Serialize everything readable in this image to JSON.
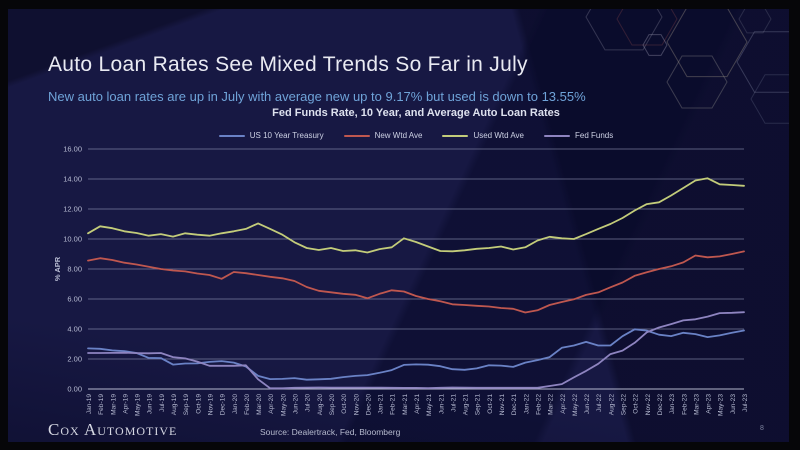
{
  "slide": {
    "title": "Auto Loan Rates See Mixed Trends So Far in July",
    "subtitle": "New auto loan rates are up in July with average new up to 9.17% but used is down to 13.55%",
    "page_number": "8"
  },
  "footer": {
    "logo_text": "Cox Automotive",
    "source": "Source: Dealertrack, Fed, Bloomberg"
  },
  "colors": {
    "slide_bg": "#171843",
    "frame": "#060609",
    "title_text": "#e9eaf2",
    "subtitle_text": "#6fa3d8",
    "axis_text": "#b7bbd2",
    "gridline": "#9aa0c0"
  },
  "chart_data": {
    "type": "line",
    "title": "Fed Funds Rate, 10 Year, and Average Auto Loan Rates",
    "xlabel": "",
    "ylabel": "% APR",
    "ylim": [
      0,
      16
    ],
    "yticks": [
      "16.00",
      "14.00",
      "12.00",
      "10.00",
      "8.00",
      "6.00",
      "4.00",
      "2.00",
      "0.00"
    ],
    "grid": "horizontal",
    "legend_position": "top",
    "categories": [
      "Jan-19",
      "Feb-19",
      "Mar-19",
      "Apr-19",
      "May-19",
      "Jun-19",
      "Jul-19",
      "Aug-19",
      "Sep-19",
      "Oct-19",
      "Nov-19",
      "Dec-19",
      "Jan-20",
      "Feb-20",
      "Mar-20",
      "Apr-20",
      "May-20",
      "Jun-20",
      "Jul-20",
      "Aug-20",
      "Sep-20",
      "Oct-20",
      "Nov-20",
      "Dec-20",
      "Jan-21",
      "Feb-21",
      "Mar-21",
      "Apr-21",
      "May-21",
      "Jun-21",
      "Jul-21",
      "Aug-21",
      "Sep-21",
      "Oct-21",
      "Nov-21",
      "Dec-21",
      "Jan-22",
      "Feb-22",
      "Mar-22",
      "Apr-22",
      "May-22",
      "Jun-22",
      "Jul-22",
      "Aug-22",
      "Sep-22",
      "Oct-22",
      "Nov-22",
      "Dec-22",
      "Jan-23",
      "Feb-23",
      "Mar-23",
      "Apr-23",
      "May-23",
      "Jun-23",
      "Jul-23"
    ],
    "series": [
      {
        "name": "US 10 Year Treasury",
        "color": "#6a82c6",
        "values": [
          2.71,
          2.68,
          2.57,
          2.53,
          2.4,
          2.07,
          2.06,
          1.63,
          1.7,
          1.71,
          1.81,
          1.86,
          1.76,
          1.5,
          0.87,
          0.66,
          0.67,
          0.73,
          0.62,
          0.65,
          0.68,
          0.79,
          0.87,
          0.93,
          1.08,
          1.26,
          1.61,
          1.64,
          1.62,
          1.52,
          1.32,
          1.28,
          1.37,
          1.58,
          1.56,
          1.47,
          1.76,
          1.93,
          2.13,
          2.75,
          2.9,
          3.14,
          2.9,
          2.9,
          3.52,
          3.98,
          3.89,
          3.62,
          3.53,
          3.75,
          3.66,
          3.46,
          3.57,
          3.75,
          3.9
        ]
      },
      {
        "name": "New Wtd Ave",
        "color": "#bf574f",
        "values": [
          8.56,
          8.72,
          8.6,
          8.42,
          8.3,
          8.15,
          8.0,
          7.9,
          7.84,
          7.7,
          7.6,
          7.35,
          7.8,
          7.72,
          7.6,
          7.48,
          7.38,
          7.2,
          6.8,
          6.55,
          6.45,
          6.35,
          6.28,
          6.05,
          6.35,
          6.58,
          6.5,
          6.2,
          6.0,
          5.85,
          5.65,
          5.6,
          5.55,
          5.5,
          5.4,
          5.35,
          5.1,
          5.25,
          5.6,
          5.8,
          5.98,
          6.27,
          6.44,
          6.78,
          7.1,
          7.55,
          7.78,
          8.0,
          8.18,
          8.44,
          8.9,
          8.78,
          8.84,
          9.0,
          9.17
        ]
      },
      {
        "name": "Used Wtd Ave",
        "color": "#c3cc7a",
        "values": [
          10.38,
          10.85,
          10.72,
          10.51,
          10.4,
          10.22,
          10.33,
          10.16,
          10.38,
          10.29,
          10.22,
          10.38,
          10.51,
          10.67,
          11.04,
          10.67,
          10.29,
          9.78,
          9.4,
          9.27,
          9.4,
          9.2,
          9.25,
          9.1,
          9.33,
          9.45,
          10.05,
          9.8,
          9.5,
          9.2,
          9.18,
          9.25,
          9.35,
          9.4,
          9.5,
          9.3,
          9.45,
          9.9,
          10.15,
          10.05,
          10.0,
          10.33,
          10.67,
          11.0,
          11.4,
          11.9,
          12.33,
          12.45,
          12.9,
          13.4,
          13.9,
          14.05,
          13.65,
          13.6,
          13.55
        ]
      },
      {
        "name": "Fed Funds",
        "color": "#8e84c0",
        "values": [
          2.4,
          2.4,
          2.41,
          2.42,
          2.39,
          2.38,
          2.4,
          2.13,
          2.04,
          1.83,
          1.55,
          1.55,
          1.55,
          1.58,
          0.65,
          0.05,
          0.05,
          0.08,
          0.09,
          0.1,
          0.09,
          0.09,
          0.09,
          0.09,
          0.09,
          0.08,
          0.07,
          0.07,
          0.06,
          0.08,
          0.1,
          0.09,
          0.08,
          0.08,
          0.08,
          0.08,
          0.08,
          0.08,
          0.2,
          0.33,
          0.77,
          1.21,
          1.68,
          2.33,
          2.56,
          3.08,
          3.78,
          4.1,
          4.33,
          4.57,
          4.65,
          4.83,
          5.06,
          5.08,
          5.12
        ]
      }
    ]
  }
}
